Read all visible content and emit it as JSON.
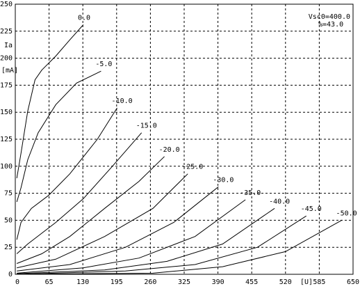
{
  "chart_data": {
    "type": "line",
    "y_label": "Ia",
    "y_unit": "[mA]",
    "x_unit": "[U]",
    "annotations": [
      "Vsc0=400.0",
      "%=43.0"
    ],
    "xlim": [
      0,
      650
    ],
    "xticks": [
      0,
      65,
      130,
      195,
      260,
      325,
      390,
      455,
      520,
      585,
      650
    ],
    "ylim": [
      0,
      250
    ],
    "yticks": [
      0,
      25,
      50,
      75,
      100,
      125,
      150,
      175,
      200,
      225,
      250
    ],
    "grid": true,
    "color": "#000000",
    "series": [
      {
        "name": "0.0",
        "x": [
          3,
          11,
          24,
          38,
          51,
          78,
          105,
          131
        ],
        "values": [
          89,
          112,
          151,
          180,
          189,
          202,
          217,
          231
        ]
      },
      {
        "name": "-5.0",
        "x": [
          3,
          11,
          24,
          44,
          78,
          118,
          165
        ],
        "values": [
          67,
          80,
          106,
          131,
          157,
          177,
          188
        ]
      },
      {
        "name": "-10.0",
        "x": [
          3,
          11,
          31,
          64,
          105,
          158,
          196
        ],
        "values": [
          32,
          48,
          61,
          73,
          93,
          125,
          154
        ]
      },
      {
        "name": "-15.0",
        "x": [
          3,
          24,
          78,
          131,
          185,
          243
        ],
        "values": [
          19,
          28,
          48,
          70,
          99,
          131
        ]
      },
      {
        "name": "-20.0",
        "x": [
          3,
          51,
          105,
          172,
          238,
          287
        ],
        "values": [
          10,
          19,
          35,
          61,
          86,
          109
        ]
      },
      {
        "name": "-25.0",
        "x": [
          3,
          78,
          172,
          265,
          332
        ],
        "values": [
          6,
          14,
          35,
          61,
          93
        ]
      },
      {
        "name": "-30.0",
        "x": [
          3,
          105,
          212,
          305,
          391
        ],
        "values": [
          3,
          9,
          25,
          48,
          81
        ]
      },
      {
        "name": "-35.0",
        "x": [
          3,
          131,
          238,
          346,
          443
        ],
        "values": [
          1,
          6,
          15,
          35,
          69
        ]
      },
      {
        "name": "-40.0",
        "x": [
          3,
          172,
          292,
          399,
          499
        ],
        "values": [
          0.6,
          4,
          12,
          28,
          61
        ]
      },
      {
        "name": "-45.0",
        "x": [
          3,
          212,
          346,
          466,
          560
        ],
        "values": [
          0,
          3,
          9,
          25,
          54
        ]
      },
      {
        "name": "-50.0",
        "x": [
          8,
          265,
          399,
          520,
          628
        ],
        "values": [
          0,
          1,
          7,
          21,
          50
        ]
      }
    ]
  }
}
